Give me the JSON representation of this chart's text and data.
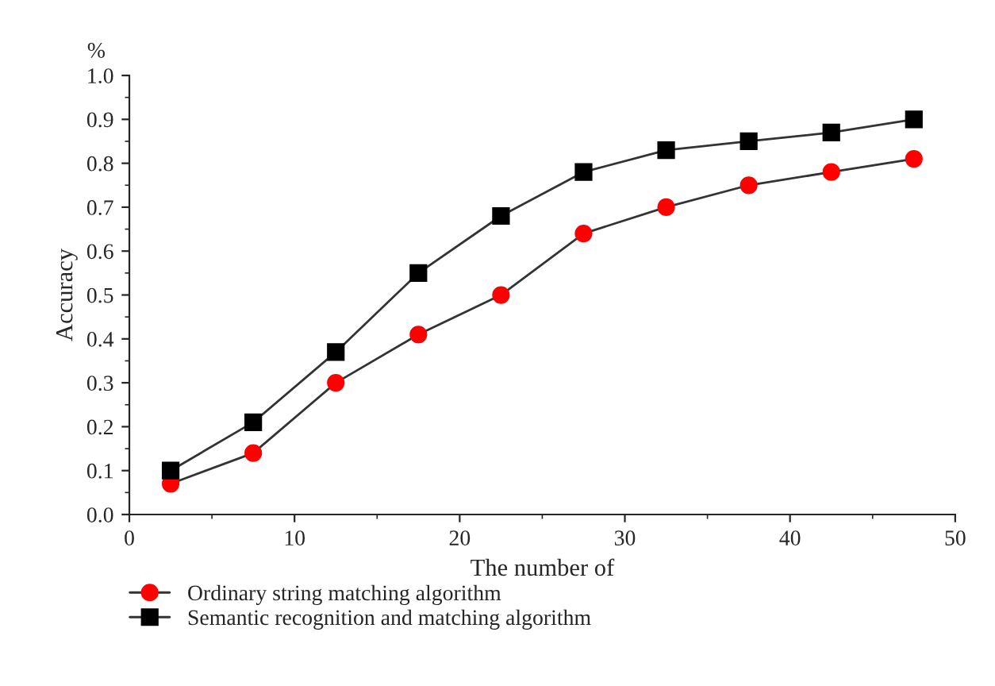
{
  "chart_data": {
    "type": "line",
    "xlabel": "The number of",
    "ylabel": "Accuracy",
    "annotations": [
      "%"
    ],
    "x": [
      2.5,
      7.5,
      12.5,
      17.5,
      22.5,
      27.5,
      32.5,
      37.5,
      42.5,
      47.5
    ],
    "series": [
      {
        "name": "Ordinary string matching algorithm",
        "color": "#ff0000",
        "marker": "circle",
        "values": [
          0.07,
          0.14,
          0.3,
          0.41,
          0.5,
          0.64,
          0.7,
          0.75,
          0.78,
          0.81
        ]
      },
      {
        "name": "Semantic recognition and matching algorithm",
        "color": "#000000",
        "marker": "square",
        "values": [
          0.1,
          0.21,
          0.37,
          0.55,
          0.68,
          0.78,
          0.83,
          0.85,
          0.87,
          0.9
        ]
      }
    ],
    "xlim": [
      0,
      50
    ],
    "xticks": [
      0,
      10,
      20,
      30,
      40,
      50
    ],
    "ylim": [
      0,
      1.0
    ],
    "yticks": [
      {
        "value": 0,
        "label": "0.0"
      },
      {
        "value": 0.1,
        "label": "0.1"
      },
      {
        "value": 0.2,
        "label": "0.2"
      },
      {
        "value": 0.3,
        "label": "0.3"
      },
      {
        "value": 0.4,
        "label": "0.4"
      },
      {
        "value": 0.5,
        "label": "0.5"
      },
      {
        "value": 0.6,
        "label": "0.6"
      },
      {
        "value": 0.7,
        "label": "0.7"
      },
      {
        "value": 0.8,
        "label": "0.8"
      },
      {
        "value": 0.9,
        "label": "0.9"
      },
      {
        "value": 1.0,
        "label": "1.0"
      }
    ],
    "legend": "bottom",
    "grid": false,
    "line_style": "solid"
  }
}
